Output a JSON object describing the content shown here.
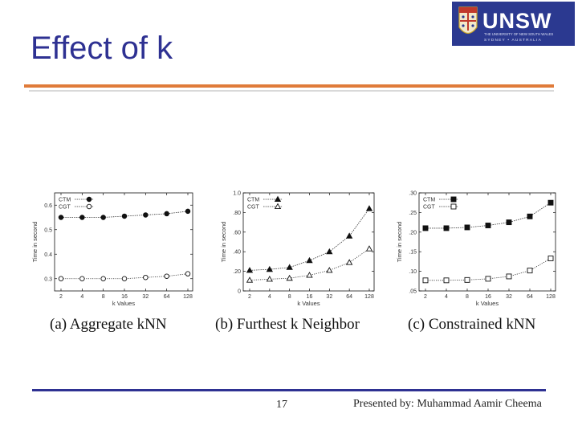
{
  "slide": {
    "title": "Effect of k",
    "page_number": "17",
    "presenter": "Presented by: Muhammad Aamir Cheema",
    "logo": {
      "brand": "UNSW",
      "small_line_1": "THE UNIVERSITY OF NEW SOUTH WALES",
      "small_line_2": "SYDNEY • AUSTRALIA",
      "color": "#2b3990"
    },
    "accent_color": "#e07b3a",
    "title_color": "#2e3192"
  },
  "chart_data": [
    {
      "type": "line",
      "caption": "(a) Aggregate kNN",
      "xlabel": "k Values",
      "ylabel": "Time in second",
      "categories": [
        "2",
        "4",
        "8",
        "16",
        "32",
        "64",
        "128"
      ],
      "ylim": [
        0.25,
        0.65
      ],
      "yticks": [
        0.3,
        0.4,
        0.5,
        0.6
      ],
      "yticklabels": [
        "0.3",
        "0.4",
        "0.5",
        "0.6"
      ],
      "legend_position": "top-left",
      "series": [
        {
          "name": "CTM",
          "marker": "filled-circle",
          "values": [
            0.55,
            0.55,
            0.55,
            0.555,
            0.56,
            0.565,
            0.575
          ]
        },
        {
          "name": "CGT",
          "marker": "open-circle",
          "values": [
            0.3,
            0.3,
            0.3,
            0.3,
            0.305,
            0.31,
            0.32
          ]
        }
      ]
    },
    {
      "type": "line",
      "caption": "(b) Furthest k Neighbor",
      "xlabel": "k Values",
      "ylabel": "Time in second",
      "categories": [
        "2",
        "4",
        "8",
        "16",
        "32",
        "64",
        "128"
      ],
      "ylim": [
        0,
        1.0
      ],
      "yticks": [
        0,
        0.2,
        0.4,
        0.6,
        0.8,
        1.0
      ],
      "yticklabels": [
        "0",
        ".20",
        ".40",
        ".60",
        ".80",
        "1.0"
      ],
      "legend_position": "top-left",
      "series": [
        {
          "name": "CTM",
          "marker": "filled-triangle",
          "values": [
            0.21,
            0.22,
            0.24,
            0.31,
            0.4,
            0.56,
            0.84
          ]
        },
        {
          "name": "CGT",
          "marker": "open-triangle",
          "values": [
            0.11,
            0.12,
            0.13,
            0.16,
            0.21,
            0.29,
            0.43
          ]
        }
      ]
    },
    {
      "type": "line",
      "caption": "(c) Constrained kNN",
      "xlabel": "k Values",
      "ylabel": "Time in second",
      "categories": [
        "2",
        "4",
        "8",
        "16",
        "32",
        "64",
        "128"
      ],
      "ylim": [
        0.05,
        0.3
      ],
      "yticks": [
        0.05,
        0.1,
        0.15,
        0.2,
        0.25,
        0.3
      ],
      "yticklabels": [
        ".05",
        ".10",
        ".15",
        ".20",
        ".25",
        ".30"
      ],
      "legend_position": "top-left",
      "series": [
        {
          "name": "CTM",
          "marker": "filled-square",
          "values": [
            0.21,
            0.21,
            0.212,
            0.217,
            0.225,
            0.24,
            0.275
          ]
        },
        {
          "name": "CGT",
          "marker": "open-square",
          "values": [
            0.077,
            0.077,
            0.078,
            0.081,
            0.087,
            0.102,
            0.133
          ]
        }
      ]
    }
  ]
}
